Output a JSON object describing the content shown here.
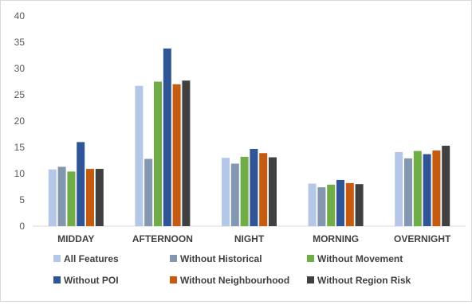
{
  "chart_data": {
    "type": "bar",
    "categories": [
      "MIDDAY",
      "AFTERNOON",
      "NIGHT",
      "MORNING",
      "OVERNIGHT"
    ],
    "series": [
      {
        "name": "All Features",
        "color": "#b4c7e7",
        "values": [
          10.8,
          26.7,
          13.0,
          8.1,
          14.1
        ]
      },
      {
        "name": "Without Historical",
        "color": "#8497b0",
        "values": [
          11.3,
          12.8,
          11.9,
          7.4,
          12.9
        ]
      },
      {
        "name": "Without Movement",
        "color": "#70ad47",
        "values": [
          10.4,
          27.5,
          13.2,
          7.9,
          14.3
        ]
      },
      {
        "name": "Without POI",
        "color": "#2f5597",
        "values": [
          16.0,
          33.8,
          14.7,
          8.8,
          13.7
        ]
      },
      {
        "name": "Without Neighbourhood",
        "color": "#c55a11",
        "values": [
          10.9,
          27.0,
          13.9,
          8.2,
          14.4
        ]
      },
      {
        "name": "Without Region Risk",
        "color": "#404040",
        "values": [
          10.9,
          27.7,
          13.1,
          8.0,
          15.3
        ]
      }
    ],
    "ylim": [
      0,
      40
    ],
    "yticks": [
      "0",
      "5",
      "10",
      "15",
      "20",
      "25",
      "30",
      "35",
      "40"
    ],
    "grid": false,
    "legend": "bottom"
  }
}
